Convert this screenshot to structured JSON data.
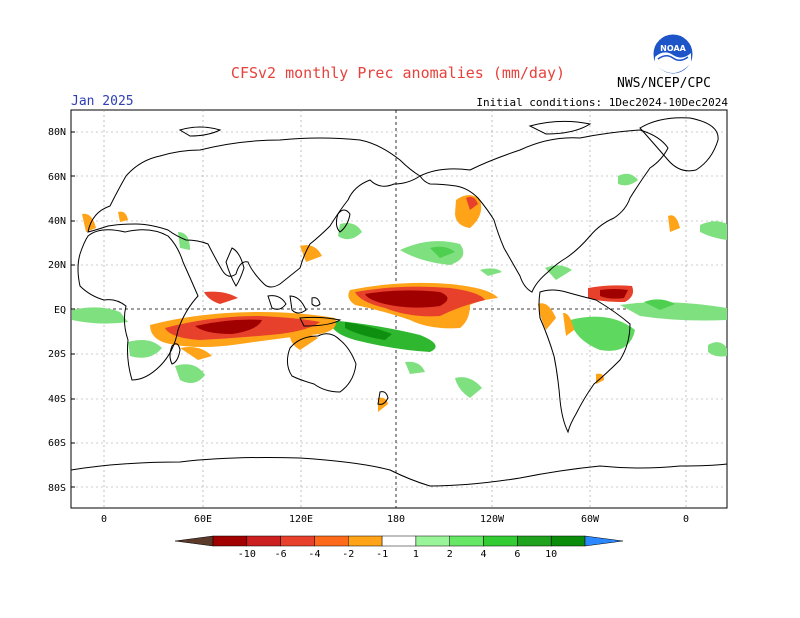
{
  "header": {
    "title": "CFSv2 monthly Prec anomalies (mm/day)",
    "month": "Jan 2025",
    "initial_conditions": "Initial conditions: 1Dec2024-10Dec2024",
    "agency": "NWS/NCEP/CPC",
    "logo_text": "NOAA"
  },
  "map": {
    "lat_labels": [
      "80N",
      "60N",
      "40N",
      "20N",
      "EQ",
      "20S",
      "40S",
      "60S",
      "80S"
    ],
    "lon_labels": [
      "0",
      "60E",
      "120E",
      "180",
      "120W",
      "60W",
      "0"
    ],
    "projection": "cylindrical equidistant, centered on 180"
  },
  "colorbar": {
    "labels": [
      "-10",
      "-6",
      "-4",
      "-2",
      "-1",
      "1",
      "2",
      "4",
      "6",
      "10"
    ],
    "colors": [
      "#5c3a2a",
      "#a00000",
      "#cc1f1f",
      "#e8412b",
      "#ff6a1a",
      "#ffa319",
      "#ffffff",
      "#9af59a",
      "#66e866",
      "#33cc33",
      "#1fa31f",
      "#0a8c0a",
      "#2b88ff"
    ]
  },
  "anomalies": {
    "dry_color": "#e8412b",
    "wet_color": "#33cc33"
  }
}
